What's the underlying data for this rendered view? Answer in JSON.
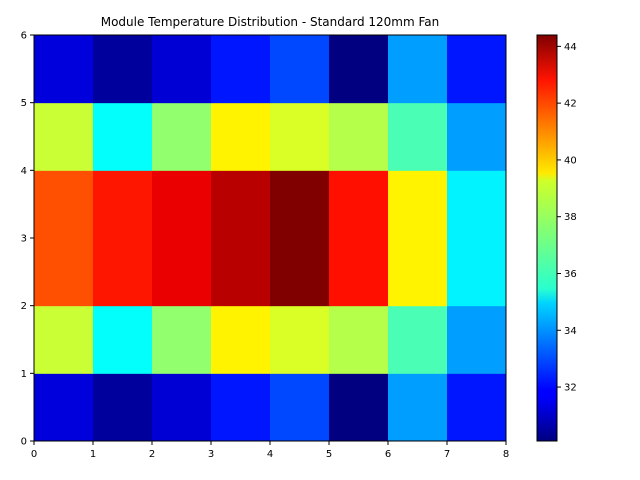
{
  "chart_data": {
    "type": "heatmap",
    "title": "Module Temperature Distribution - Standard 120mm Fan",
    "xlabel": "",
    "ylabel": "",
    "xlim": [
      0,
      8
    ],
    "ylim": [
      0,
      6
    ],
    "x_ticks": [
      "0",
      "1",
      "2",
      "3",
      "4",
      "5",
      "6",
      "7",
      "8"
    ],
    "y_ticks": [
      "0",
      "1",
      "2",
      "3",
      "4",
      "5",
      "6"
    ],
    "colorbar": {
      "colormap": "jet",
      "min": 30.1,
      "max": 44.4,
      "ticks": [
        32,
        34,
        36,
        38,
        40,
        42,
        44
      ],
      "tick_labels": [
        "32",
        "34",
        "36",
        "38",
        "40",
        "42",
        "44"
      ]
    },
    "rows_bottom_to_top": [
      [
        31.4,
        30.5,
        31.3,
        32.2,
        32.9,
        30.1,
        34.1,
        32.2
      ],
      [
        38.3,
        35.5,
        37.5,
        39.2,
        38.5,
        38.0,
        36.5,
        34.1
      ],
      [
        41.5,
        42.3,
        42.9,
        43.6,
        44.4,
        42.4,
        39.2,
        35.3
      ],
      [
        41.5,
        42.3,
        42.9,
        43.6,
        44.4,
        42.4,
        39.2,
        35.3
      ],
      [
        38.3,
        35.5,
        37.5,
        39.2,
        38.5,
        38.0,
        36.5,
        34.1
      ],
      [
        31.4,
        30.5,
        31.3,
        32.2,
        32.9,
        30.1,
        34.1,
        32.2
      ]
    ],
    "grid": false
  }
}
